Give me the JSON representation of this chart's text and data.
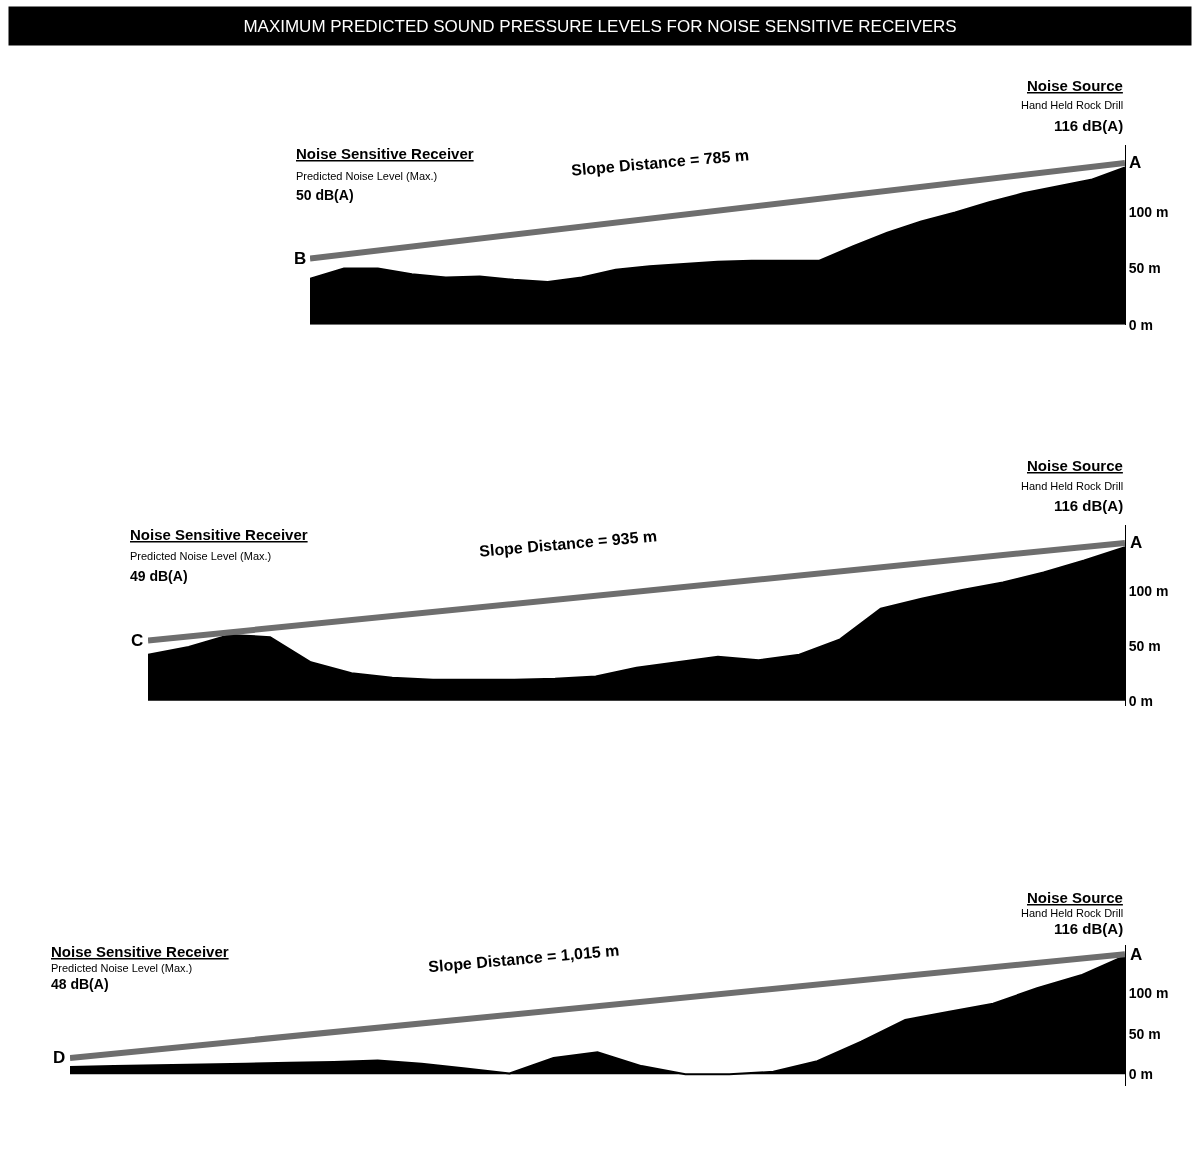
{
  "chart_data": [
    {
      "type": "area",
      "title": "MAXIMUM PREDICTED SOUND PRESSURE LEVELS FOR NOISE SENSITIVE RECEIVERS",
      "categories": [
        null,
        null,
        null,
        null,
        null,
        null,
        null,
        null,
        null,
        null,
        null,
        null,
        null,
        null,
        null,
        null,
        null,
        null,
        null,
        null,
        null,
        null,
        null,
        null,
        null
      ],
      "series": [
        {
          "color": "#000000",
          "values": [
            41,
            50,
            50,
            45,
            42,
            43,
            40,
            38,
            42,
            49,
            52,
            54,
            56,
            57,
            57,
            57,
            70,
            82,
            92,
            100,
            109,
            117,
            123,
            129,
            140
          ]
        },
        {
          "type": "line",
          "color": "#6e6e6e",
          "values": [
            59,
            null,
            null,
            null,
            null,
            null,
            null,
            null,
            null,
            null,
            null,
            null,
            null,
            null,
            null,
            null,
            null,
            null,
            null,
            null,
            null,
            null,
            null,
            null,
            144
          ]
        }
      ],
      "ylim": [
        0,
        160
      ],
      "yticks": [
        {
          "value": 0,
          "label": "0 m"
        },
        {
          "value": 50,
          "label": "50 m"
        },
        {
          "value": 100,
          "label": "100 m"
        }
      ],
      "marker": "none",
      "tick_labels": "y",
      "annotations": [
        "Noise Sensitive Receiver",
        "Predicted Noise Level (Max.)",
        "50 dB(A)",
        "Noise Source",
        "Hand Held Rock Drill",
        "116 dB(A)",
        "B",
        "A",
        "Slope Distance = 785 m"
      ]
    },
    {
      "type": "area",
      "categories": [
        null,
        null,
        null,
        null,
        null,
        null,
        null,
        null,
        null,
        null,
        null,
        null,
        null,
        null,
        null,
        null,
        null,
        null,
        null,
        null,
        null,
        null,
        null,
        null,
        null
      ],
      "series": [
        {
          "color": "#000000",
          "values": [
            42,
            49,
            60,
            58,
            35,
            25,
            21,
            19,
            19,
            19,
            20,
            22,
            30,
            35,
            40,
            37,
            42,
            56,
            84,
            93,
            101,
            108,
            117,
            128,
            140
          ]
        },
        {
          "type": "line",
          "color": "#6e6e6e",
          "values": [
            55,
            null,
            null,
            null,
            null,
            null,
            null,
            null,
            null,
            null,
            null,
            null,
            null,
            null,
            null,
            null,
            null,
            null,
            null,
            null,
            null,
            null,
            null,
            null,
            144
          ]
        }
      ],
      "ylim": [
        -5,
        160
      ],
      "yticks": [
        {
          "value": 0,
          "label": "0 m"
        },
        {
          "value": 50,
          "label": "50 m"
        },
        {
          "value": 100,
          "label": "100 m"
        }
      ],
      "marker": "none",
      "tick_labels": "y",
      "annotations": [
        "Noise Sensitive Receiver",
        "Predicted Noise Level (Max.)",
        "49 dB(A)",
        "Noise Source",
        "Hand Held Rock Drill",
        "116 dB(A)",
        "C",
        "A",
        "Slope Distance = 935 m"
      ]
    },
    {
      "type": "area",
      "categories": [
        null,
        null,
        null,
        null,
        null,
        null,
        null,
        null,
        null,
        null,
        null,
        null,
        null,
        null,
        null,
        null,
        null,
        null,
        null,
        null,
        null,
        null,
        null,
        null,
        null
      ],
      "series": [
        {
          "color": "#000000",
          "values": [
            9,
            10,
            11,
            12,
            13,
            14,
            15,
            17,
            13,
            7,
            1,
            20,
            27,
            10,
            0,
            0,
            3,
            16,
            40,
            67,
            77,
            87,
            106,
            122,
            146
          ]
        },
        {
          "type": "line",
          "color": "#6e6e6e",
          "values": [
            20,
            null,
            null,
            null,
            null,
            null,
            null,
            null,
            null,
            null,
            null,
            null,
            null,
            null,
            null,
            null,
            null,
            null,
            null,
            null,
            null,
            null,
            null,
            null,
            148
          ]
        }
      ],
      "ylim": [
        -14,
        160
      ],
      "yticks": [
        {
          "value": 0,
          "label": "0 m"
        },
        {
          "value": 50,
          "label": "50 m"
        },
        {
          "value": 100,
          "label": "100 m"
        }
      ],
      "marker": "none",
      "tick_labels": "y",
      "annotations": [
        "Noise Sensitive Receiver",
        "Predicted Noise Level (Max.)",
        "48 dB(A)",
        "Noise Source",
        "Hand Held Rock Drill",
        "116 dB(A)",
        "D",
        "A",
        "Slope Distance = 1,015 m"
      ]
    }
  ]
}
